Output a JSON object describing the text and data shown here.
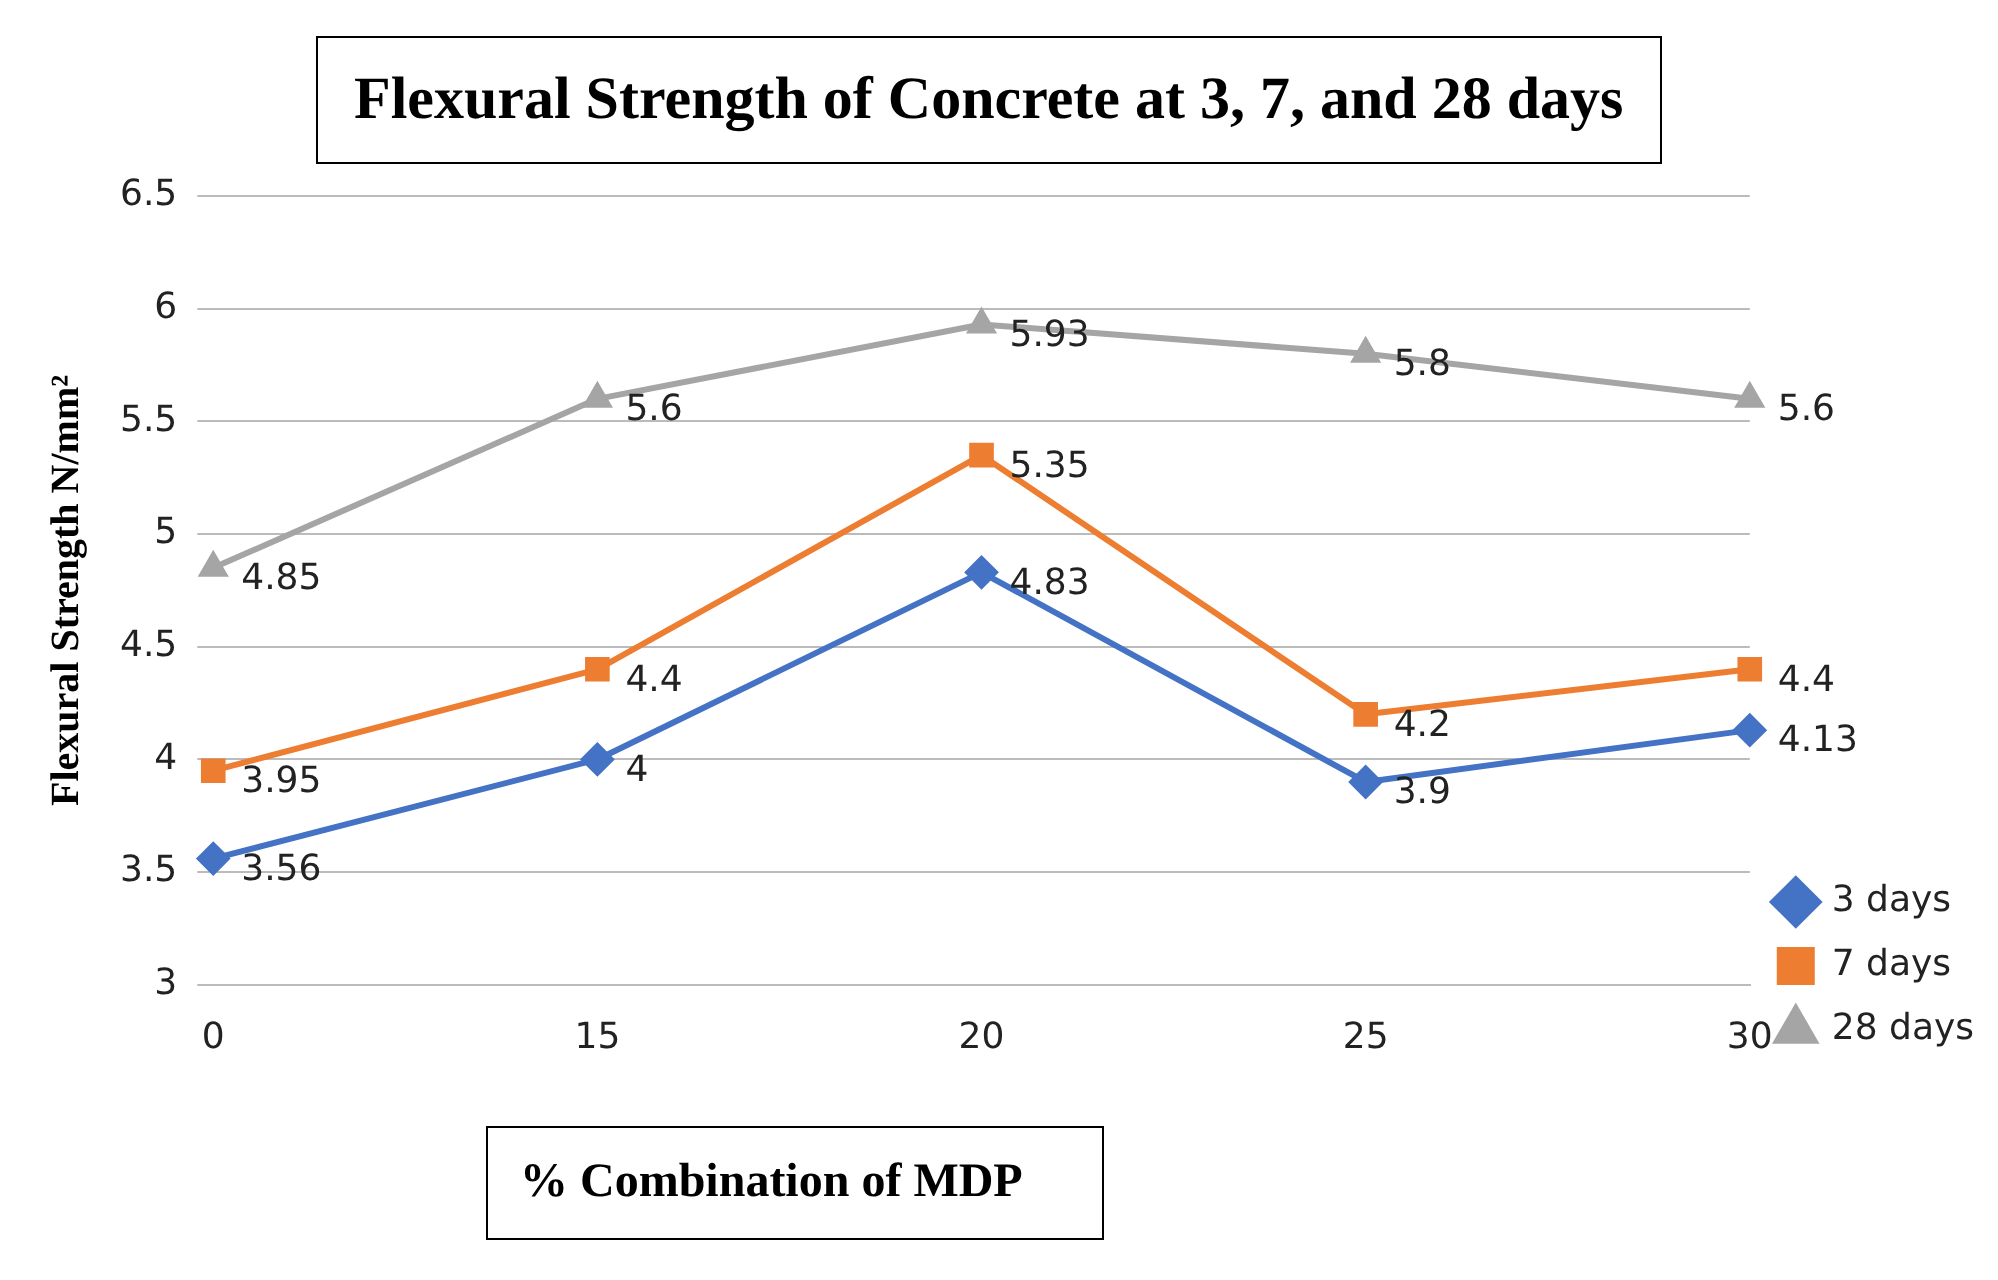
{
  "chart_data": {
    "type": "line",
    "title": "Flexural Strength of Concrete at 3, 7, and 28 days",
    "xlabel": "% Combination of MDP",
    "ylabel": "Flexural Strength N/mm²",
    "categories": [
      "0",
      "15",
      "20",
      "25",
      "30"
    ],
    "series": [
      {
        "name": "3 days",
        "color": "#4472c4",
        "marker": "diamond",
        "values": [
          3.56,
          4,
          4.83,
          3.9,
          4.13
        ]
      },
      {
        "name": "7 days",
        "color": "#ed7d31",
        "marker": "square",
        "values": [
          3.95,
          4.4,
          5.35,
          4.2,
          4.4
        ]
      },
      {
        "name": "28 days",
        "color": "#a5a5a5",
        "marker": "triangle",
        "values": [
          4.85,
          5.6,
          5.93,
          5.8,
          5.6
        ]
      }
    ],
    "ylim": [
      3,
      6.5
    ],
    "yticks": [
      3,
      3.5,
      4,
      4.5,
      5,
      5.5,
      6,
      6.5
    ],
    "grid": "y",
    "legend": "bottom right",
    "data_labels": true,
    "line_style": "solid"
  }
}
